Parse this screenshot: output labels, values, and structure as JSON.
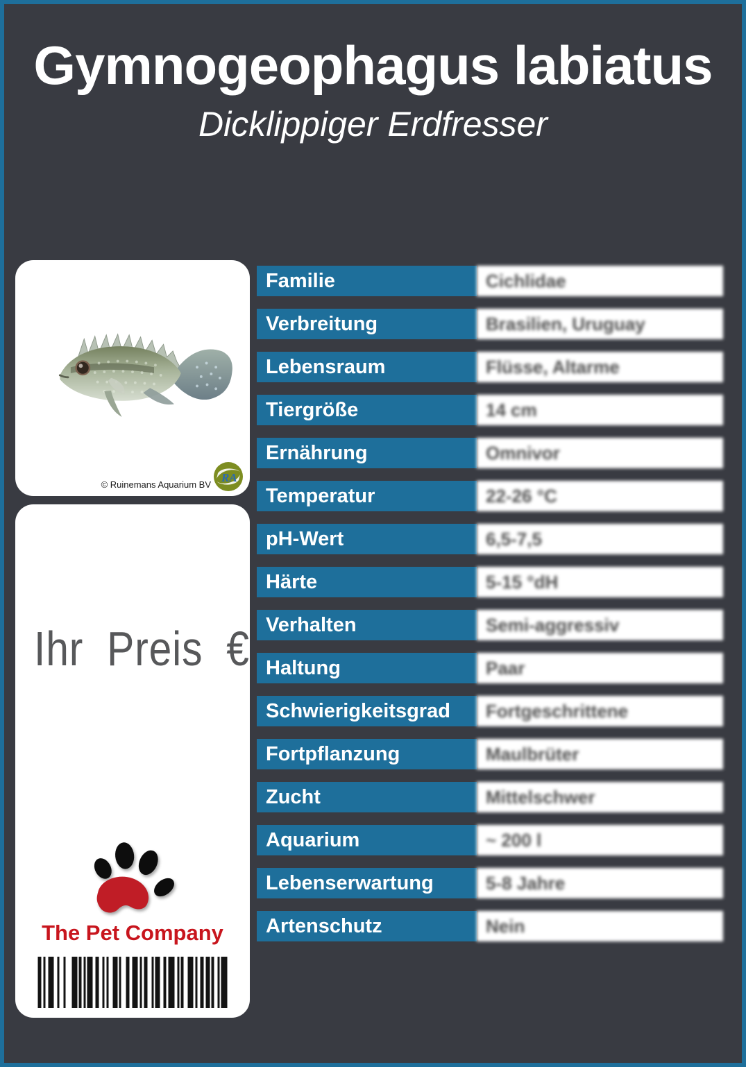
{
  "header": {
    "title": "Gymnogeophagus labiatus",
    "subtitle": "Dicklippiger Erdfresser"
  },
  "photo_card": {
    "copyright": "© Ruinemans Aquarium BV",
    "ra_logo_text": "RA"
  },
  "price_card": {
    "price_label": "Ihr Preis €",
    "brand_name": "The Pet Company"
  },
  "table": {
    "rows": [
      {
        "label": "Familie",
        "value": "Cichlidae"
      },
      {
        "label": "Verbreitung",
        "value": "Brasilien, Uruguay"
      },
      {
        "label": "Lebensraum",
        "value": "Flüsse, Altarme"
      },
      {
        "label": "Tiergröße",
        "value": "14 cm"
      },
      {
        "label": "Ernährung",
        "value": "Omnivor"
      },
      {
        "label": "Temperatur",
        "value": "22-26 °C"
      },
      {
        "label": "pH-Wert",
        "value": "6,5-7,5"
      },
      {
        "label": "Härte",
        "value": "5-15 °dH"
      },
      {
        "label": "Verhalten",
        "value": "Semi-aggressiv"
      },
      {
        "label": "Haltung",
        "value": "Paar"
      },
      {
        "label": "Schwierigkeitsgrad",
        "value": "Fortgeschrittene"
      },
      {
        "label": "Fortpflanzung",
        "value": "Maulbrüter"
      },
      {
        "label": "Zucht",
        "value": "Mittelschwer"
      },
      {
        "label": "Aquarium",
        "value": "~ 200 l"
      },
      {
        "label": "Lebenserwartung",
        "value": "5-8 Jahre"
      },
      {
        "label": "Artenschutz",
        "value": "Nein"
      }
    ]
  },
  "icons": {
    "paw": "paw-icon",
    "barcode": "barcode",
    "ra_logo": "ra-aquarium-logo",
    "fish": "fish-photo"
  },
  "colors": {
    "accent_blue": "#1e6f9b",
    "background_dark": "#393b42",
    "brand_red": "#c8151d",
    "price_text_gray": "#57585a"
  },
  "barcode": {
    "pattern": [
      5,
      3,
      3,
      4,
      8,
      5,
      3,
      6,
      3,
      9,
      8,
      2,
      4,
      3,
      3,
      2,
      8,
      4,
      5,
      5,
      3,
      3,
      3,
      6,
      7,
      2,
      3,
      7,
      5,
      4,
      8,
      3,
      3,
      3,
      5,
      6,
      3,
      2,
      7,
      5,
      4,
      3,
      9,
      4,
      3,
      2,
      4,
      6,
      8,
      3,
      3,
      4,
      5,
      3,
      6,
      2,
      4,
      5,
      3,
      2,
      9
    ]
  }
}
